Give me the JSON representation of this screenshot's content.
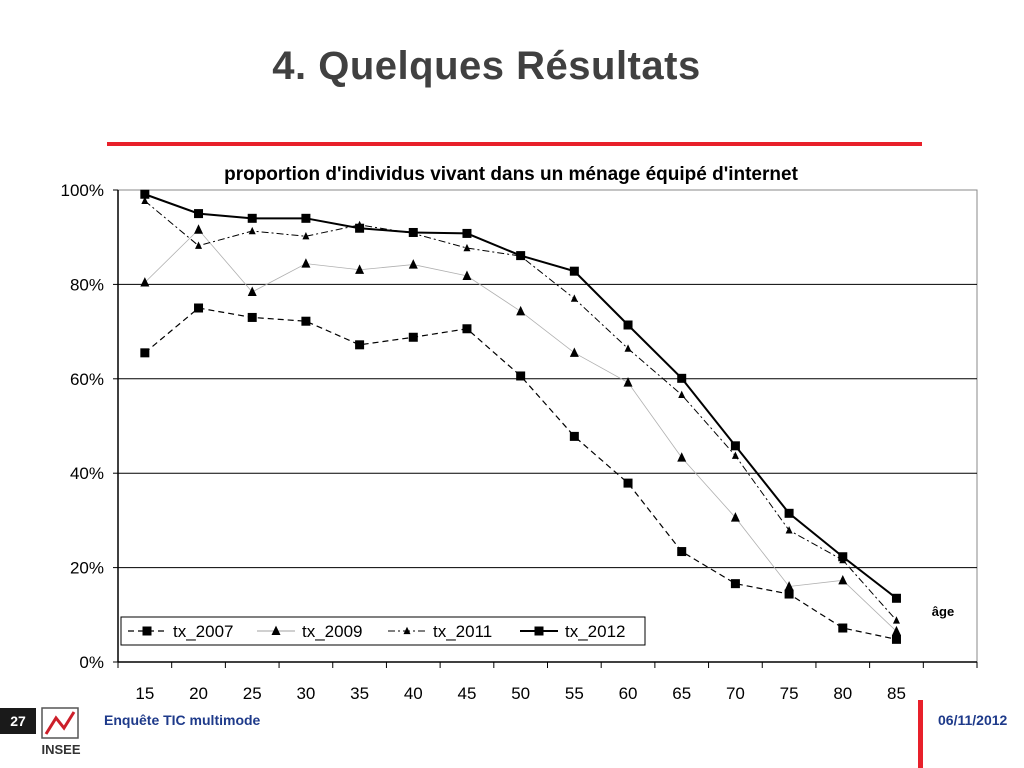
{
  "slide": {
    "title": "4. Quelques Résultats",
    "page_number": "27",
    "survey_name": "Enquête TIC multimode",
    "date": "06/11/2012",
    "logo_text": "INSEE",
    "accent_color": "#e8202a",
    "footer_text_color": "#1e3a8a"
  },
  "chart_data": {
    "type": "line",
    "title": "proportion d'individus vivant dans un ménage équipé d'internet",
    "xlabel": "âge",
    "ylabel": "",
    "x": [
      15,
      20,
      25,
      30,
      35,
      40,
      45,
      50,
      55,
      60,
      65,
      70,
      75,
      80,
      85
    ],
    "x_tick_labels": [
      "15",
      "20",
      "25",
      "30",
      "35",
      "40",
      "45",
      "50",
      "55",
      "60",
      "65",
      "70",
      "75",
      "80",
      "85"
    ],
    "ylim": [
      0,
      100
    ],
    "y_ticks": [
      0,
      20,
      40,
      60,
      80,
      100
    ],
    "y_tick_labels": [
      "0%",
      "20%",
      "40%",
      "60%",
      "80%",
      "100%"
    ],
    "grid": "horizontal",
    "legend_position": "bottom-left inside plot",
    "series": [
      {
        "name": "tx_2007",
        "marker": "square",
        "line": "dashed",
        "values": [
          65.5,
          75,
          73,
          72.2,
          67.2,
          68.8,
          70.6,
          60.6,
          47.8,
          37.9,
          23.4,
          16.6,
          14.4,
          7.2,
          4.8
        ]
      },
      {
        "name": "tx_2009",
        "marker": "triangle",
        "line": "thin-solid",
        "values": [
          80.4,
          91.6,
          78.4,
          84.4,
          83.1,
          84.2,
          81.8,
          74.3,
          65.5,
          59.2,
          43.3,
          30.6,
          16.0,
          17.3,
          6.5
        ]
      },
      {
        "name": "tx_2011",
        "marker": "small-triangle",
        "line": "dash-dot",
        "values": [
          97.7,
          88.2,
          91.3,
          90.2,
          92.6,
          90.8,
          87.7,
          86.0,
          77.0,
          66.4,
          56.6,
          43.7,
          27.9,
          21.6,
          8.8
        ]
      },
      {
        "name": "tx_2012",
        "marker": "square",
        "line": "solid",
        "values": [
          99.1,
          95.0,
          94.0,
          94.0,
          91.9,
          91.0,
          90.8,
          86.1,
          82.8,
          71.4,
          60.1,
          45.8,
          31.5,
          22.3,
          13.5
        ]
      }
    ]
  }
}
